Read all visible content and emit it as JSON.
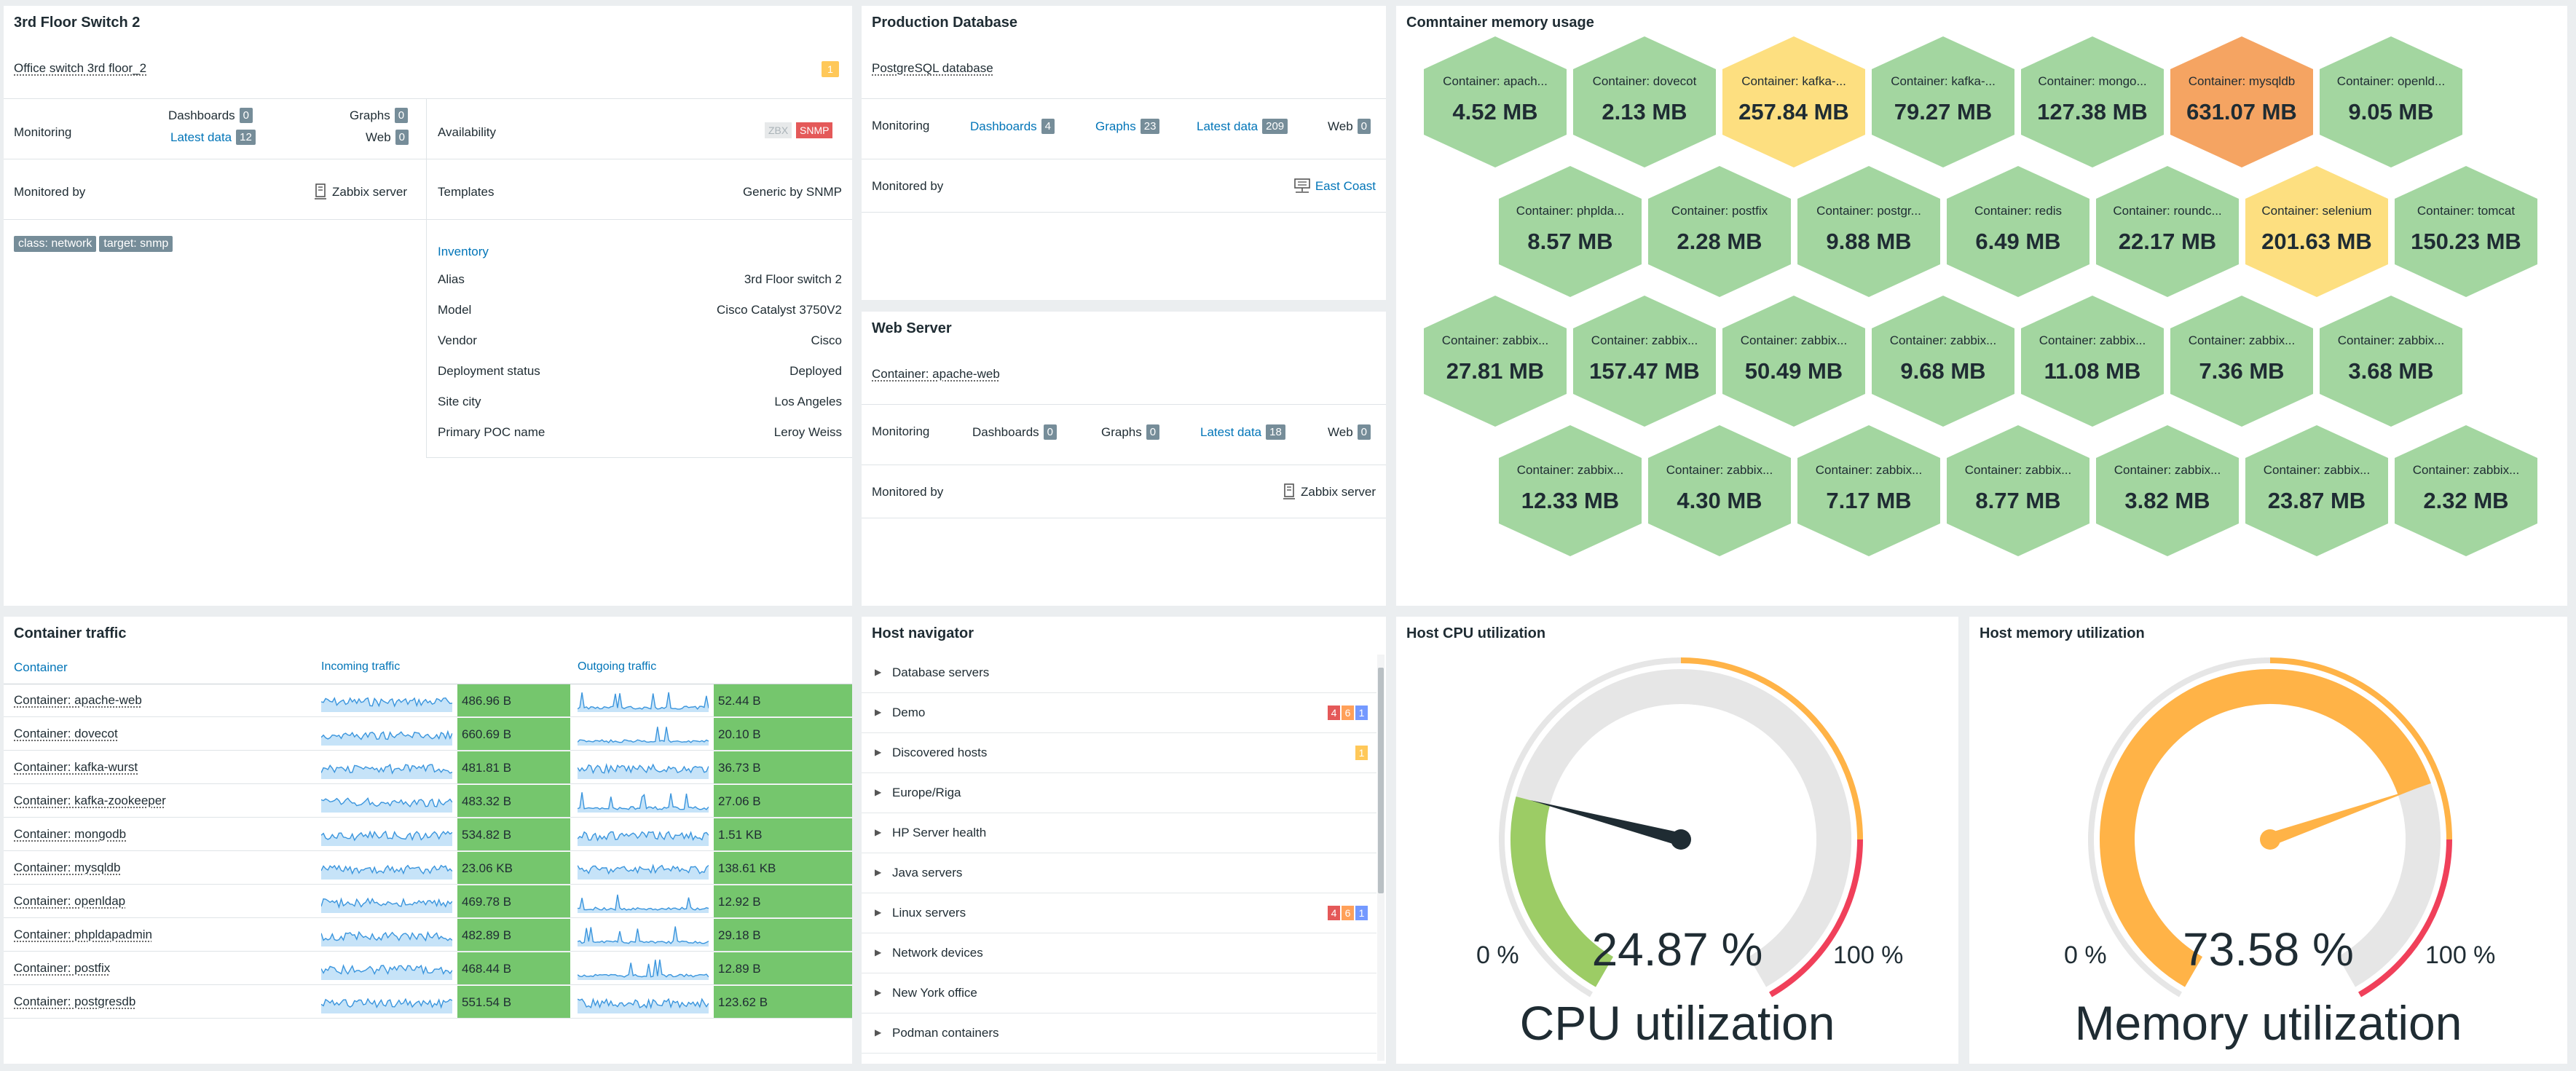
{
  "host_switch": {
    "title": "3rd Floor Switch 2",
    "name": "Office switch 3rd floor_2",
    "problem_count": "1",
    "monitoring_label": "Monitoring",
    "dashboards_label": "Dashboards",
    "dashboards_count": "0",
    "graphs_label": "Graphs",
    "graphs_count": "0",
    "latest_data_label": "Latest data",
    "latest_data_count": "12",
    "web_label": "Web",
    "web_count": "0",
    "availability_label": "Availability",
    "zbx_label": "ZBX",
    "snmp_label": "SNMP",
    "monitored_by_label": "Monitored by",
    "monitored_by_value": "Zabbix server",
    "templates_label": "Templates",
    "templates_value": "Generic by SNMP",
    "tags": [
      "class: network",
      "target: snmp"
    ],
    "inventory_label": "Inventory",
    "inventory": [
      {
        "k": "Alias",
        "v": "3rd Floor switch 2"
      },
      {
        "k": "Model",
        "v": "Cisco Catalyst 3750V2"
      },
      {
        "k": "Vendor",
        "v": "Cisco"
      },
      {
        "k": "Deployment status",
        "v": "Deployed"
      },
      {
        "k": "Site city",
        "v": "Los Angeles"
      },
      {
        "k": "Primary POC name",
        "v": "Leroy Weiss"
      }
    ]
  },
  "host_db": {
    "title": "Production Database",
    "name": "PostgreSQL database",
    "monitoring_label": "Monitoring",
    "dashboards_label": "Dashboards",
    "dashboards_count": "4",
    "graphs_label": "Graphs",
    "graphs_count": "23",
    "latest_data_label": "Latest data",
    "latest_data_count": "209",
    "web_label": "Web",
    "web_count": "0",
    "monitored_by_label": "Monitored by",
    "monitored_by_value": "East Coast"
  },
  "host_web": {
    "title": "Web Server",
    "name": "Container: apache-web",
    "monitoring_label": "Monitoring",
    "dashboards_label": "Dashboards",
    "dashboards_count": "0",
    "graphs_label": "Graphs",
    "graphs_count": "0",
    "latest_data_label": "Latest data",
    "latest_data_count": "18",
    "web_label": "Web",
    "web_count": "0",
    "monitored_by_label": "Monitored by",
    "monitored_by_value": "Zabbix server"
  },
  "honeycomb": {
    "title": "Comntainer memory usage",
    "colors": {
      "green": "#a3d6a0",
      "yellow": "#fddf80",
      "orange": "#f5a462"
    },
    "cells": [
      {
        "label": "Container: apach...",
        "value": "4.52 MB",
        "color": "green"
      },
      {
        "label": "Container: dovecot",
        "value": "2.13 MB",
        "color": "green"
      },
      {
        "label": "Container: kafka-...",
        "value": "257.84 MB",
        "color": "yellow"
      },
      {
        "label": "Container: kafka-...",
        "value": "79.27 MB",
        "color": "green"
      },
      {
        "label": "Container: mongo...",
        "value": "127.38 MB",
        "color": "green"
      },
      {
        "label": "Container: mysqldb",
        "value": "631.07 MB",
        "color": "orange"
      },
      {
        "label": "Container: openld...",
        "value": "9.05 MB",
        "color": "green"
      },
      {
        "label": "Container: phplda...",
        "value": "8.57 MB",
        "color": "green"
      },
      {
        "label": "Container: postfix",
        "value": "2.28 MB",
        "color": "green"
      },
      {
        "label": "Container: postgr...",
        "value": "9.88 MB",
        "color": "green"
      },
      {
        "label": "Container: redis",
        "value": "6.49 MB",
        "color": "green"
      },
      {
        "label": "Container: roundc...",
        "value": "22.17 MB",
        "color": "green"
      },
      {
        "label": "Container: selenium",
        "value": "201.63 MB",
        "color": "yellow"
      },
      {
        "label": "Container: tomcat",
        "value": "150.23 MB",
        "color": "green"
      },
      {
        "label": "Container: zabbix...",
        "value": "27.81 MB",
        "color": "green"
      },
      {
        "label": "Container: zabbix...",
        "value": "157.47 MB",
        "color": "green"
      },
      {
        "label": "Container: zabbix...",
        "value": "50.49 MB",
        "color": "green"
      },
      {
        "label": "Container: zabbix...",
        "value": "9.68 MB",
        "color": "green"
      },
      {
        "label": "Container: zabbix...",
        "value": "11.08 MB",
        "color": "green"
      },
      {
        "label": "Container: zabbix...",
        "value": "7.36 MB",
        "color": "green"
      },
      {
        "label": "Container: zabbix...",
        "value": "3.68 MB",
        "color": "green"
      },
      {
        "label": "Container: zabbix...",
        "value": "12.33 MB",
        "color": "green"
      },
      {
        "label": "Container: zabbix...",
        "value": "4.30 MB",
        "color": "green"
      },
      {
        "label": "Container: zabbix...",
        "value": "7.17 MB",
        "color": "green"
      },
      {
        "label": "Container: zabbix...",
        "value": "8.77 MB",
        "color": "green"
      },
      {
        "label": "Container: zabbix...",
        "value": "3.82 MB",
        "color": "green"
      },
      {
        "label": "Container: zabbix...",
        "value": "23.87 MB",
        "color": "green"
      },
      {
        "label": "Container: zabbix...",
        "value": "2.32 MB",
        "color": "green"
      }
    ]
  },
  "traffic": {
    "title": "Container traffic",
    "col_container": "Container",
    "col_incoming": "Incoming traffic",
    "col_outgoing": "Outgoing traffic",
    "rows": [
      {
        "name": "Container: apache-web",
        "in": "486.96 B",
        "out": "52.44 B"
      },
      {
        "name": "Container: dovecot",
        "in": "660.69 B",
        "out": "20.10 B"
      },
      {
        "name": "Container: kafka-wurst",
        "in": "481.81 B",
        "out": "36.73 B"
      },
      {
        "name": "Container: kafka-zookeeper",
        "in": "483.32 B",
        "out": "27.06 B"
      },
      {
        "name": "Container: mongodb",
        "in": "534.82 B",
        "out": "1.51 KB"
      },
      {
        "name": "Container: mysqldb",
        "in": "23.06 KB",
        "out": "138.61 KB"
      },
      {
        "name": "Container: openldap",
        "in": "469.78 B",
        "out": "12.92 B"
      },
      {
        "name": "Container: phpldapadmin",
        "in": "482.89 B",
        "out": "29.18 B"
      },
      {
        "name": "Container: postfix",
        "in": "468.44 B",
        "out": "12.89 B"
      },
      {
        "name": "Container: postgresdb",
        "in": "551.54 B",
        "out": "123.62 B"
      }
    ]
  },
  "navigator": {
    "title": "Host navigator",
    "items": [
      {
        "label": "Database servers",
        "badges": []
      },
      {
        "label": "Demo",
        "badges": [
          {
            "n": "4",
            "c": "#e45959"
          },
          {
            "n": "6",
            "c": "#ffa059"
          },
          {
            "n": "1",
            "c": "#7499ff"
          }
        ]
      },
      {
        "label": "Discovered hosts",
        "badges": [
          {
            "n": "1",
            "c": "#ffc859"
          }
        ]
      },
      {
        "label": "Europe/Riga",
        "badges": []
      },
      {
        "label": "HP Server health",
        "badges": []
      },
      {
        "label": "Java servers",
        "badges": []
      },
      {
        "label": "Linux servers",
        "badges": [
          {
            "n": "4",
            "c": "#e45959"
          },
          {
            "n": "6",
            "c": "#ffa059"
          },
          {
            "n": "1",
            "c": "#7499ff"
          }
        ]
      },
      {
        "label": "Network devices",
        "badges": []
      },
      {
        "label": "New York office",
        "badges": []
      },
      {
        "label": "Podman containers",
        "badges": []
      }
    ]
  },
  "cpu_gauge": {
    "title": "Host CPU utilization",
    "value_text": "24.87 %",
    "value": 24.87,
    "min_text": "0 %",
    "max_text": "100 %",
    "description": "CPU utilization",
    "value_color": "#9ccc65",
    "needle_color": "#1f2c33"
  },
  "mem_gauge": {
    "title": "Host memory utilization",
    "value_text": "73.58 %",
    "value": 73.58,
    "min_text": "0 %",
    "max_text": "100 %",
    "description": "Memory utilization",
    "value_color": "#ffb347",
    "needle_color": "#ffb347"
  },
  "threshold_colors": {
    "warning": "#ffb347",
    "critical": "#f0405a"
  }
}
